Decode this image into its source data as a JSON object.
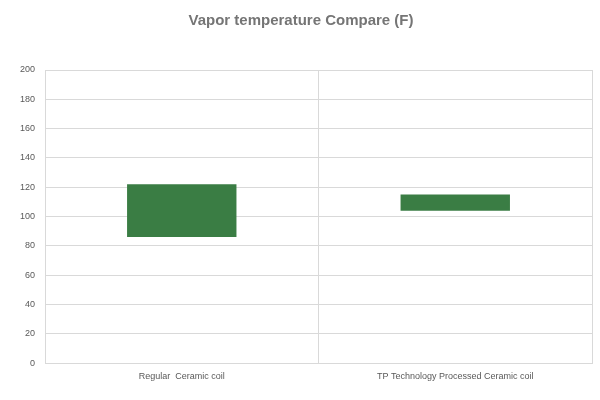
{
  "chart_data": {
    "type": "bar",
    "title": "Vapor temperature Compare (F)",
    "categories": [
      "Regular  Ceramic coil",
      "TP Technology Processed Ceramic coil"
    ],
    "values": [
      [
        86,
        122
      ],
      [
        104,
        115
      ]
    ],
    "color": "#3a7d44",
    "ylim": [
      0,
      200
    ],
    "yticks": [
      0,
      20,
      40,
      60,
      80,
      100,
      120,
      140,
      160,
      180,
      200
    ],
    "grid": true
  }
}
